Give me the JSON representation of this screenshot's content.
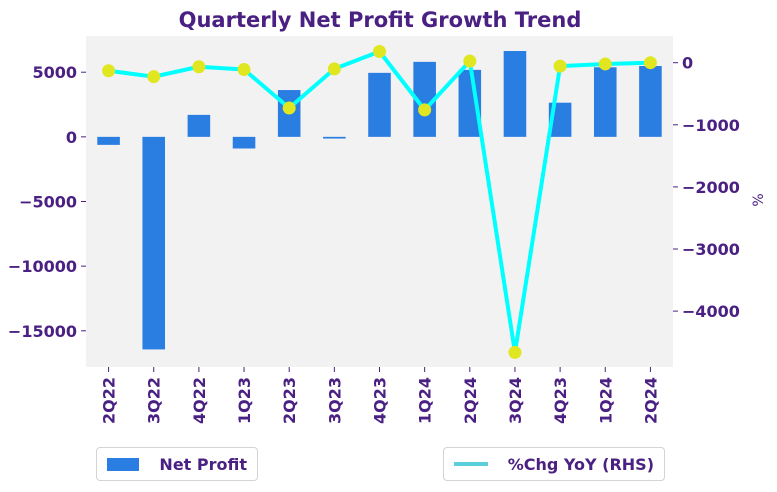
{
  "chart_data": {
    "type": "bar",
    "title": "Quarterly Net Profit Growth Trend",
    "xlabel": "",
    "ylabel": "",
    "ylabel_right": "%",
    "categories": [
      "2Q22",
      "3Q22",
      "4Q22",
      "1Q23",
      "2Q23",
      "3Q23",
      "4Q23",
      "1Q24",
      "2Q24",
      "3Q24",
      "4Q23",
      "1Q24",
      "2Q24"
    ],
    "series": [
      {
        "name": "Net Profit",
        "type": "bar",
        "axis": "left",
        "color": "#2a7de1",
        "values": [
          -620,
          -16440,
          1700,
          -900,
          3620,
          -130,
          4950,
          5800,
          5180,
          6640,
          2640,
          5380,
          5480
        ]
      },
      {
        "name": "%Chg YoY (RHS)",
        "type": "line",
        "axis": "right",
        "color": "#00ffff",
        "marker_color": "#e0e620",
        "legend_color": "#5bcfdc",
        "values": [
          -130,
          -225,
          -65,
          -110,
          -730,
          -100,
          180,
          -760,
          25,
          -4665,
          -55,
          -20,
          0
        ]
      }
    ],
    "ylim": [
      -17800,
      7800
    ],
    "y_ticks": [
      5000,
      0,
      -5000,
      -10000,
      -15000
    ],
    "y_tick_labels": [
      "5000",
      "0",
      "−5000",
      "−10000",
      "−15000"
    ],
    "ylim_right": [
      -4900,
      430
    ],
    "y2_ticks": [
      0,
      -1000,
      -2000,
      -3000,
      -4000
    ],
    "y2_tick_labels": [
      "0",
      "−1000",
      "−2000",
      "−3000",
      "−4000"
    ],
    "grid": false,
    "background": "#f2f2f2",
    "legend": [
      {
        "label": "Net Profit",
        "placement": "bottom-left"
      },
      {
        "label": "%Chg YoY (RHS)",
        "placement": "bottom-right"
      }
    ]
  }
}
